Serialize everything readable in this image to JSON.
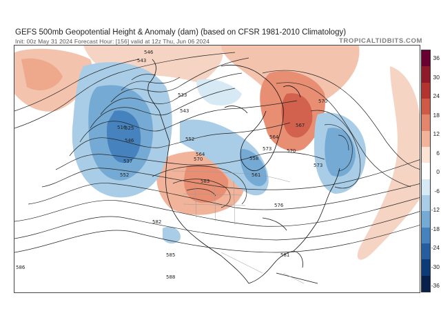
{
  "header": {
    "title": "GEFS 500mb Geopotential Height & Anomaly (dam) (based on CFSR 1981-2010 Climatology)",
    "subtitle": "Init: 00z May 31 2024   Forecast Hour: [156]   valid at 12z Thu, Jun 06 2024",
    "brand": "TROPICALTIDBITS.COM"
  },
  "colorbar": {
    "labels": [
      "36",
      "30",
      "24",
      "18",
      "12",
      "6",
      "0",
      "-6",
      "-12",
      "-18",
      "-24",
      "-30",
      "-36"
    ],
    "colors": [
      "#6a0030",
      "#8e1a2a",
      "#b3332e",
      "#cf5a45",
      "#e3866c",
      "#f1b49a",
      "#fbe3d6",
      "#ffffff",
      "#d7e9f4",
      "#a9cde6",
      "#74aad3",
      "#4682bd",
      "#255d9e",
      "#0d3b78",
      "#08214c"
    ]
  },
  "map": {
    "contour_labels": [
      {
        "text": "546"
      },
      {
        "text": "543"
      },
      {
        "text": "533"
      },
      {
        "text": "543"
      },
      {
        "text": "552"
      },
      {
        "text": "570"
      },
      {
        "text": "546"
      },
      {
        "text": "525"
      },
      {
        "text": "537"
      },
      {
        "text": "552"
      },
      {
        "text": "564"
      },
      {
        "text": "570"
      },
      {
        "text": "573"
      },
      {
        "text": "558"
      },
      {
        "text": "561"
      },
      {
        "text": "583"
      },
      {
        "text": "582"
      },
      {
        "text": "585"
      },
      {
        "text": "588"
      },
      {
        "text": "586"
      },
      {
        "text": "564"
      },
      {
        "text": "573"
      },
      {
        "text": "570"
      },
      {
        "text": "567"
      },
      {
        "text": "576"
      },
      {
        "text": "516"
      },
      {
        "text": "581"
      }
    ]
  }
}
